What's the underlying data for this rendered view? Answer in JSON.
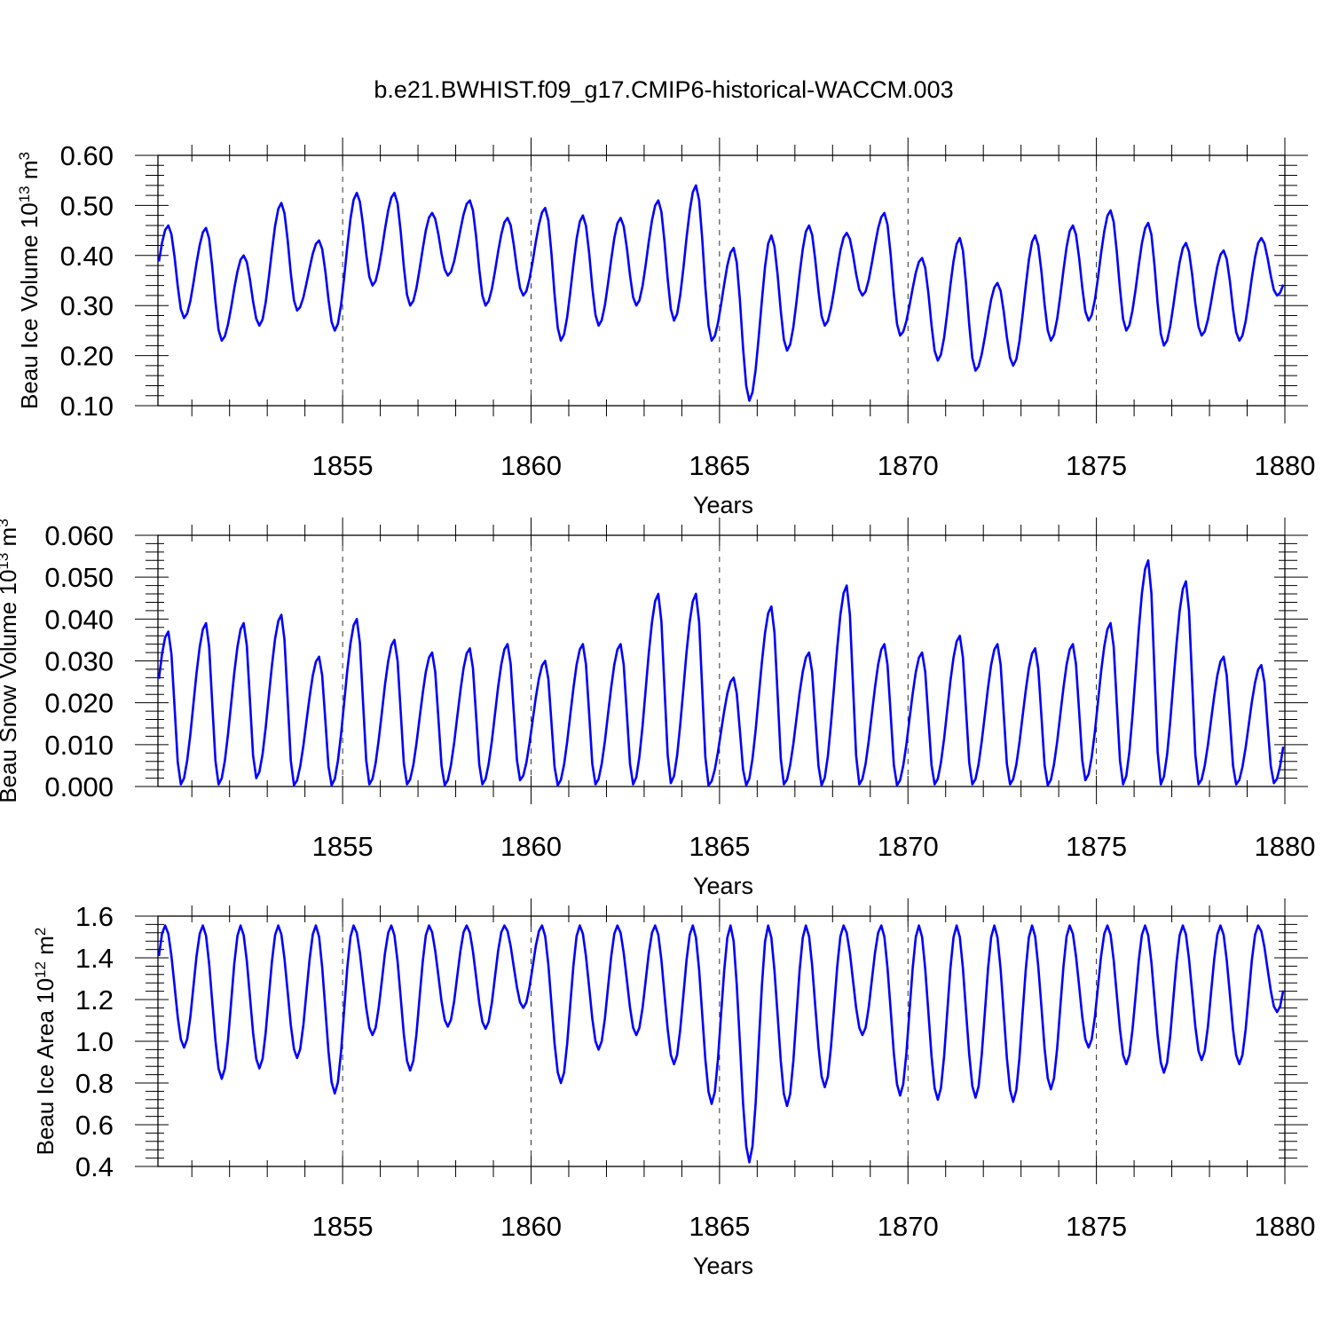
{
  "title": "b.e21.BWHIST.f09_g17.CMIP6-historical-WACCM.003",
  "chart_data": [
    {
      "type": "line",
      "ylabel": "Beau Ice Volume 10",
      "ylabel_sup": "13",
      "ylabel_unit": " m",
      "ylabel_unit_sup": "3",
      "xlabel": "Years",
      "xlim": [
        1850.1,
        1880
      ],
      "ylim": [
        0.1,
        0.6
      ],
      "yticks": [
        0.1,
        0.2,
        0.3,
        0.4,
        0.5,
        0.6
      ],
      "yticklabels": [
        "0.10",
        "0.20",
        "0.30",
        "0.40",
        "0.50",
        "0.60"
      ],
      "xticks": [
        1855,
        1860,
        1865,
        1870,
        1875,
        1880
      ],
      "xticklabels": [
        "1855",
        "1860",
        "1865",
        "1870",
        "1875",
        "1880"
      ],
      "color": "#0000ff",
      "season": {
        "min": [
          0.275,
          0.23,
          0.26,
          0.29,
          0.25,
          0.34,
          0.3,
          0.36,
          0.3,
          0.32,
          0.23,
          0.26,
          0.3,
          0.27,
          0.23,
          0.11,
          0.21,
          0.26,
          0.32,
          0.24,
          0.19,
          0.17,
          0.18,
          0.23,
          0.27,
          0.25,
          0.22,
          0.24,
          0.23,
          0.32
        ],
        "max": [
          0.46,
          0.455,
          0.4,
          0.505,
          0.43,
          0.525,
          0.525,
          0.485,
          0.51,
          0.475,
          0.495,
          0.48,
          0.475,
          0.51,
          0.54,
          0.415,
          0.44,
          0.46,
          0.445,
          0.485,
          0.395,
          0.435,
          0.345,
          0.44,
          0.46,
          0.49,
          0.465,
          0.425,
          0.41,
          0.435
        ],
        "min_month": 9,
        "max_month": 4
      }
    },
    {
      "type": "line",
      "ylabel": "Beau Snow Volume 10",
      "ylabel_sup": "13",
      "ylabel_unit": " m",
      "ylabel_unit_sup": "3",
      "xlabel": "Years",
      "xlim": [
        1850.1,
        1880
      ],
      "ylim": [
        0.0,
        0.06
      ],
      "yticks": [
        0.0,
        0.01,
        0.02,
        0.03,
        0.04,
        0.05,
        0.06
      ],
      "yticklabels": [
        "0.000",
        "0.010",
        "0.020",
        "0.030",
        "0.040",
        "0.050",
        "0.060"
      ],
      "xticks": [
        1855,
        1860,
        1865,
        1870,
        1875,
        1880
      ],
      "xticklabels": [
        "1855",
        "1860",
        "1865",
        "1870",
        "1875",
        "1880"
      ],
      "color": "#0000ff",
      "season": {
        "min": [
          0.0005,
          0.0005,
          0.002,
          0.0003,
          0.0003,
          0.0005,
          0.0005,
          0.0003,
          0.0005,
          0.0015,
          0.0003,
          0.0005,
          0.0005,
          0.0008,
          0.0003,
          0.0003,
          0.0005,
          0.0003,
          0.0005,
          0.0003,
          0.0005,
          0.0005,
          0.0005,
          0.0003,
          0.0015,
          0.0005,
          0.0005,
          0.0005,
          0.0005,
          0.0008
        ],
        "max": [
          0.037,
          0.039,
          0.039,
          0.041,
          0.031,
          0.04,
          0.035,
          0.032,
          0.033,
          0.034,
          0.03,
          0.034,
          0.034,
          0.046,
          0.046,
          0.026,
          0.043,
          0.032,
          0.048,
          0.034,
          0.032,
          0.036,
          0.034,
          0.033,
          0.034,
          0.039,
          0.054,
          0.049,
          0.031,
          0.029
        ],
        "min_month": 8,
        "max_month": 4
      }
    },
    {
      "type": "line",
      "ylabel": "Beau Ice Area 10",
      "ylabel_sup": "12",
      "ylabel_unit": " m",
      "ylabel_unit_sup": "2",
      "xlabel": "Years",
      "xlim": [
        1850.1,
        1880
      ],
      "ylim": [
        0.4,
        1.6
      ],
      "yticks": [
        0.4,
        0.6,
        0.8,
        1.0,
        1.2,
        1.4,
        1.6
      ],
      "yticklabels": [
        "0.4",
        "0.6",
        "0.8",
        "1.0",
        "1.2",
        "1.4",
        "1.6"
      ],
      "xticks": [
        1855,
        1860,
        1865,
        1870,
        1875,
        1880
      ],
      "xticklabels": [
        "1855",
        "1860",
        "1865",
        "1870",
        "1875",
        "1880"
      ],
      "color": "#0000ff",
      "season": {
        "min": [
          0.97,
          0.82,
          0.87,
          0.92,
          0.75,
          1.03,
          0.86,
          1.07,
          1.06,
          1.16,
          0.8,
          0.96,
          1.03,
          0.89,
          0.7,
          0.42,
          0.69,
          0.78,
          1.03,
          0.74,
          0.72,
          0.73,
          0.71,
          0.77,
          0.97,
          0.89,
          0.85,
          0.91,
          0.89,
          1.14
        ],
        "max": [
          1.555,
          1.555,
          1.555,
          1.555,
          1.555,
          1.555,
          1.555,
          1.555,
          1.555,
          1.555,
          1.555,
          1.555,
          1.555,
          1.555,
          1.555,
          1.555,
          1.555,
          1.555,
          1.555,
          1.555,
          1.555,
          1.555,
          1.555,
          1.555,
          1.555,
          1.555,
          1.555,
          1.555,
          1.555,
          1.555
        ],
        "min_month": 9,
        "max_month": 3
      }
    }
  ]
}
